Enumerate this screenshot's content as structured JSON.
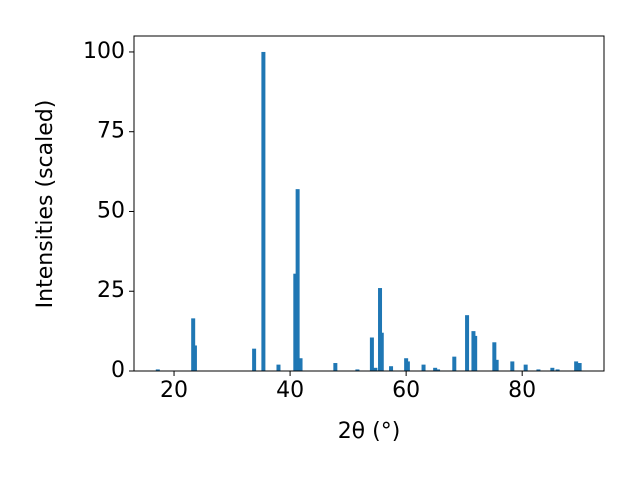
{
  "chart_data": {
    "type": "bar",
    "xlabel": "2θ (°)",
    "ylabel": "Intensities (scaled)",
    "x": [
      17.2,
      23.3,
      23.6,
      33.8,
      35.4,
      38.0,
      40.9,
      41.3,
      41.8,
      47.8,
      51.6,
      54.1,
      54.7,
      55.5,
      55.8,
      57.4,
      60.0,
      60.3,
      63.0,
      65.0,
      65.5,
      68.3,
      70.5,
      71.6,
      71.9,
      75.2,
      75.6,
      78.3,
      80.6,
      82.8,
      85.2,
      86.1,
      89.3,
      89.9
    ],
    "values": [
      0.5,
      16.5,
      8,
      7,
      100,
      2,
      30.5,
      57,
      4,
      2.5,
      0.5,
      10.5,
      1,
      26,
      12,
      1.5,
      4,
      3,
      2,
      1,
      0.5,
      4.5,
      17.5,
      12.5,
      11,
      9,
      3.5,
      3,
      2,
      0.5,
      1,
      0.5,
      3,
      2.5
    ],
    "color": "#1f77b4",
    "xlim": [
      13.1,
      94.1
    ],
    "xticks": [
      20,
      40,
      60,
      80
    ],
    "ylim": [
      0,
      105
    ],
    "yticks": [
      0,
      25,
      50,
      75,
      100
    ]
  }
}
